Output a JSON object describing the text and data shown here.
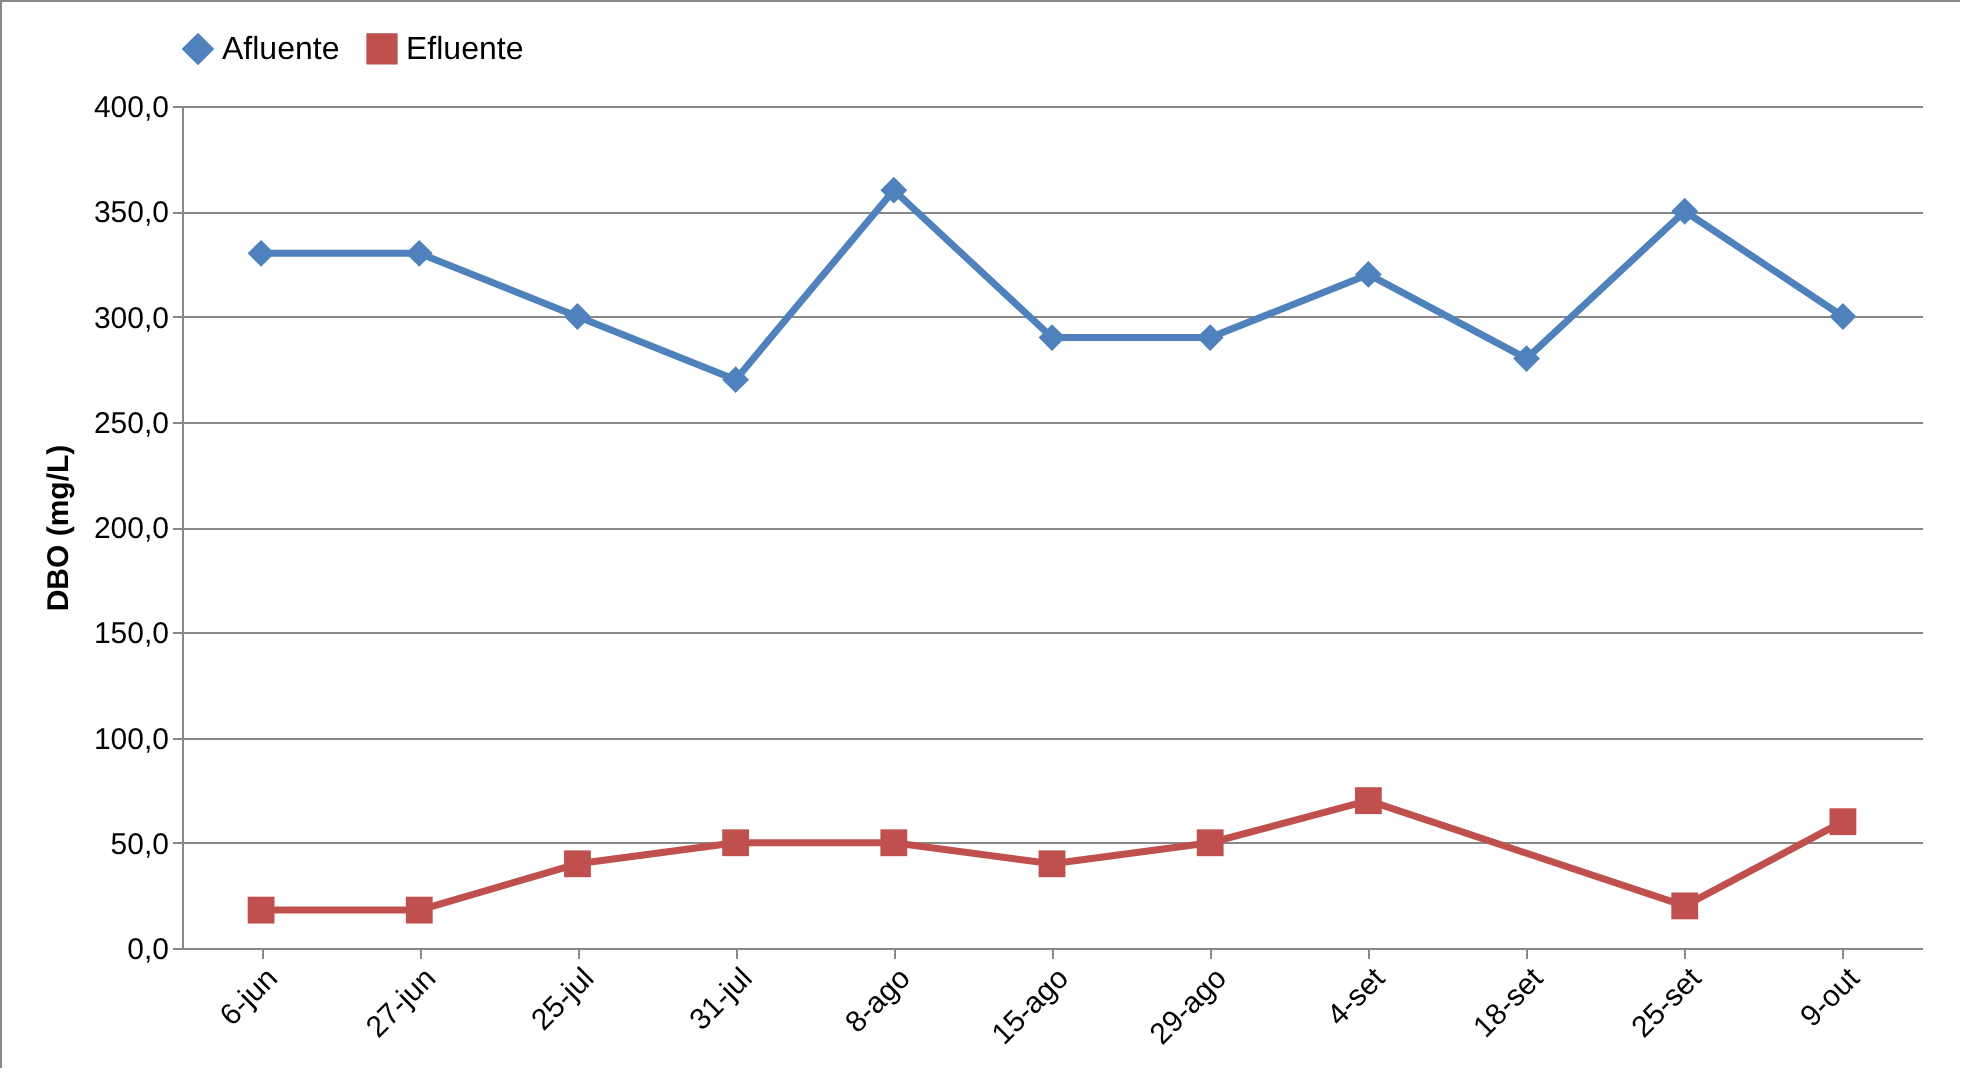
{
  "chart_data": {
    "type": "line",
    "ylabel": "DBO (mg/L)",
    "categories": [
      "6-jun",
      "27-jun",
      "25-jul",
      "31-jul",
      "8-ago",
      "15-ago",
      "29-ago",
      "4-set",
      "18-set",
      "25-set",
      "9-out"
    ],
    "series": [
      {
        "name": "Afluente",
        "color": "#4f81bd",
        "marker": "diamond",
        "values": [
          330,
          330,
          300,
          270,
          360,
          290,
          290,
          320,
          280,
          350,
          300
        ]
      },
      {
        "name": "Efluente",
        "color": "#c0504d",
        "marker": "square",
        "values": [
          18,
          18,
          40,
          50,
          50,
          40,
          50,
          70,
          null,
          20,
          60
        ]
      }
    ],
    "ylim": [
      0,
      400
    ],
    "yticks": [
      {
        "value": 0,
        "label": "0,0"
      },
      {
        "value": 50,
        "label": "50,0"
      },
      {
        "value": 100,
        "label": "100,0"
      },
      {
        "value": 150,
        "label": "150,0"
      },
      {
        "value": 200,
        "label": "200,0"
      },
      {
        "value": 250,
        "label": "250,0"
      },
      {
        "value": 300,
        "label": "300,0"
      },
      {
        "value": 350,
        "label": "350,0"
      },
      {
        "value": 400,
        "label": "400,0"
      }
    ],
    "grid": "y",
    "legend": "top",
    "line_style": "solid"
  }
}
